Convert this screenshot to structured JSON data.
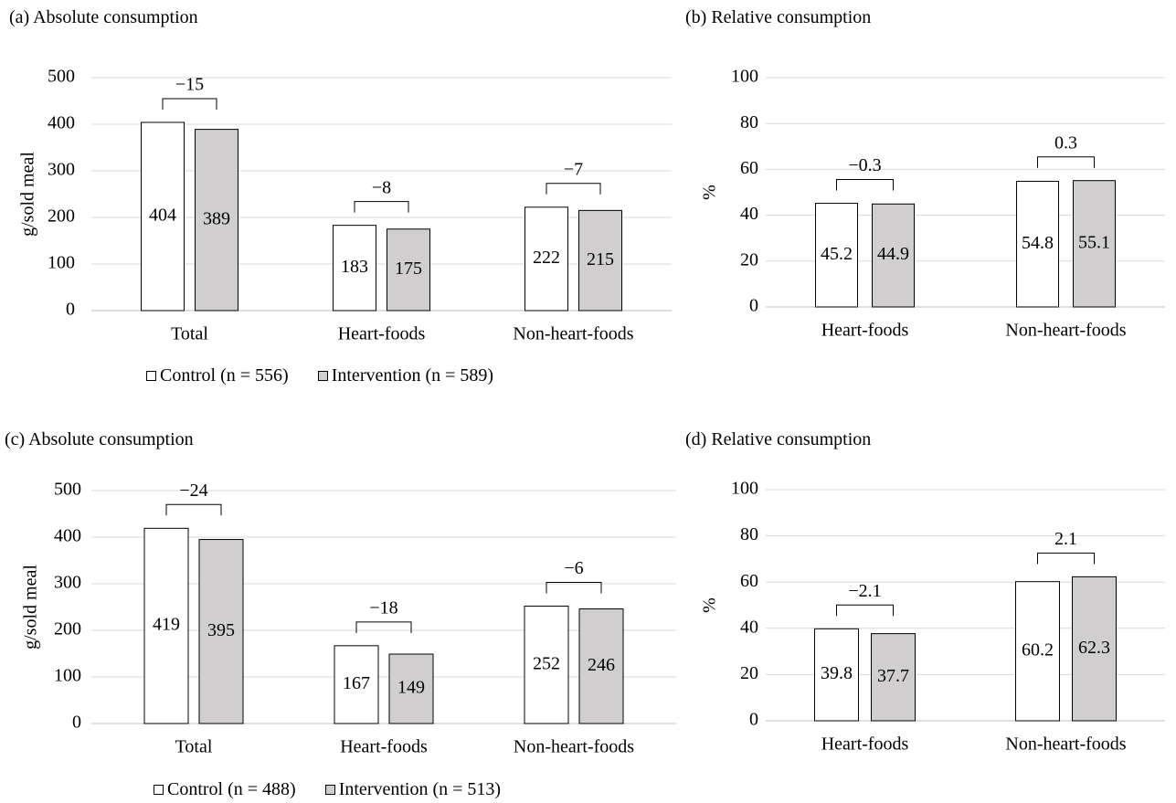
{
  "colors": {
    "control": "#ffffff",
    "intervention": "#d0cecf",
    "grid": "#d9d9d9",
    "stroke": "#000000"
  },
  "legends": [
    {
      "control_label": "Control (n = 556)",
      "intervention_label": "Intervention (n = 589)"
    },
    {
      "control_label": "Control (n = 488)",
      "intervention_label": "Intervention (n = 513)"
    }
  ],
  "chart_data": [
    {
      "type": "bar",
      "title": "(a) Absolute consumption",
      "ylabel": "g/sold meal",
      "ylim": [
        0,
        500
      ],
      "yticks": [
        "0",
        "100",
        "200",
        "300",
        "400",
        "500"
      ],
      "grid": true,
      "categories": [
        "Total",
        "Heart-foods",
        "Non-heart-foods"
      ],
      "series": [
        {
          "name": "Control (n = 556)",
          "values": [
            404,
            183,
            222
          ]
        },
        {
          "name": "Intervention (n = 589)",
          "values": [
            389,
            175,
            215
          ]
        }
      ],
      "value_labels": [
        [
          "404",
          "183",
          "222"
        ],
        [
          "389",
          "175",
          "215"
        ]
      ],
      "differences": [
        "−15",
        "−8",
        "−7"
      ]
    },
    {
      "type": "bar",
      "title": "(b) Relative consumption",
      "ylabel": "%",
      "ylim": [
        0,
        100
      ],
      "yticks": [
        "0",
        "20",
        "40",
        "60",
        "80",
        "100"
      ],
      "grid": true,
      "categories": [
        "Heart-foods",
        "Non-heart-foods"
      ],
      "series": [
        {
          "name": "Control (n = 556)",
          "values": [
            45.2,
            54.8
          ]
        },
        {
          "name": "Intervention (n = 589)",
          "values": [
            44.9,
            55.1
          ]
        }
      ],
      "value_labels": [
        [
          "45.2",
          "54.8"
        ],
        [
          "44.9",
          "55.1"
        ]
      ],
      "differences": [
        "−0.3",
        "0.3"
      ]
    },
    {
      "type": "bar",
      "title": "(c) Absolute consumption",
      "ylabel": "g/sold meal",
      "ylim": [
        0,
        500
      ],
      "yticks": [
        "0",
        "100",
        "200",
        "300",
        "400",
        "500"
      ],
      "grid": true,
      "categories": [
        "Total",
        "Heart-foods",
        "Non-heart-foods"
      ],
      "series": [
        {
          "name": "Control (n = 488)",
          "values": [
            419,
            167,
            252
          ]
        },
        {
          "name": "Intervention (n = 513)",
          "values": [
            395,
            149,
            246
          ]
        }
      ],
      "value_labels": [
        [
          "419",
          "167",
          "252"
        ],
        [
          "395",
          "149",
          "246"
        ]
      ],
      "differences": [
        "−24",
        "−18",
        "−6"
      ]
    },
    {
      "type": "bar",
      "title": "(d) Relative consumption",
      "ylabel": "%",
      "ylim": [
        0,
        100
      ],
      "yticks": [
        "0",
        "20",
        "40",
        "60",
        "80",
        "100"
      ],
      "grid": true,
      "categories": [
        "Heart-foods",
        "Non-heart-foods"
      ],
      "series": [
        {
          "name": "Control (n = 488)",
          "values": [
            39.8,
            60.2
          ]
        },
        {
          "name": "Intervention (n = 513)",
          "values": [
            37.7,
            62.3
          ]
        }
      ],
      "value_labels": [
        [
          "39.8",
          "60.2"
        ],
        [
          "37.7",
          "62.3"
        ]
      ],
      "differences": [
        "−2.1",
        "2.1"
      ]
    }
  ]
}
